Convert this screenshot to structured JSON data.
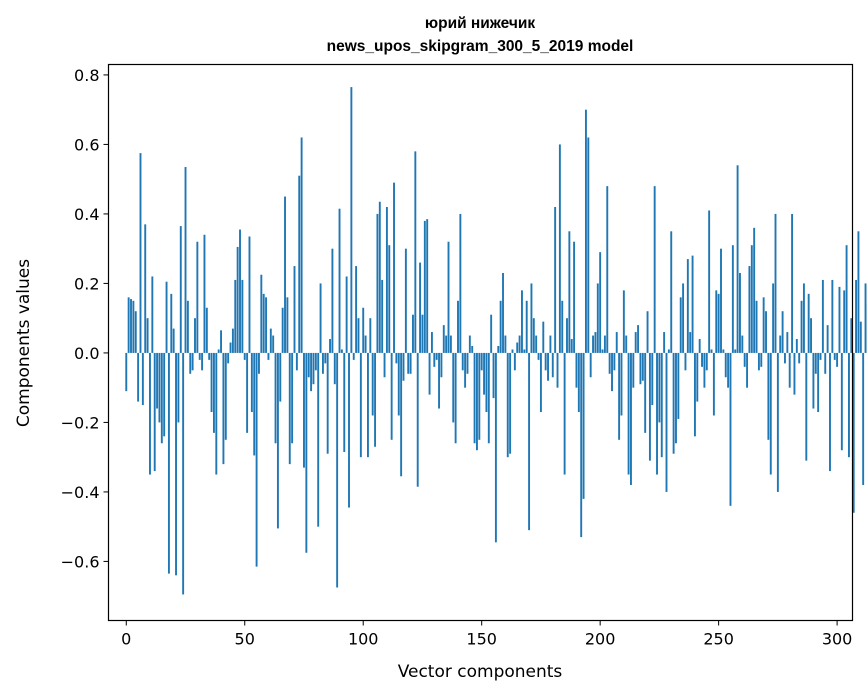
{
  "chart_data": {
    "type": "bar",
    "title": "юрий нижечик",
    "subtitle": "news_upos_skipgram_300_5_2019 model",
    "xlabel": "Vector components",
    "ylabel": "Components values",
    "xlim": [
      -7.5,
      306.5
    ],
    "ylim": [
      -0.77,
      0.83
    ],
    "xticks": [
      0,
      50,
      100,
      150,
      200,
      250,
      300
    ],
    "xtick_labels": [
      "0",
      "50",
      "100",
      "150",
      "200",
      "250",
      "300"
    ],
    "yticks": [
      -0.6,
      -0.4,
      -0.2,
      0.0,
      0.2,
      0.4,
      0.6,
      0.8
    ],
    "ytick_labels": [
      "−0.6",
      "−0.4",
      "−0.2",
      "0.0",
      "0.2",
      "0.4",
      "0.6",
      "0.8"
    ],
    "bar_color": "#1f77b4",
    "values": [
      -0.11,
      0.16,
      0.155,
      0.15,
      0.12,
      -0.14,
      0.575,
      -0.15,
      0.37,
      0.1,
      -0.35,
      0.22,
      -0.34,
      -0.16,
      -0.2,
      -0.26,
      -0.24,
      0.205,
      -0.635,
      0.17,
      0.07,
      -0.64,
      -0.2,
      0.365,
      -0.695,
      0.535,
      0.15,
      -0.06,
      -0.05,
      0.1,
      0.32,
      -0.02,
      -0.05,
      0.34,
      0.13,
      -0.02,
      -0.17,
      -0.23,
      -0.35,
      0.01,
      0.065,
      -0.32,
      -0.25,
      -0.03,
      0.03,
      0.07,
      0.21,
      0.305,
      0.355,
      0.21,
      -0.02,
      -0.23,
      0.335,
      -0.17,
      -0.295,
      -0.615,
      -0.06,
      0.225,
      0.17,
      0.16,
      -0.02,
      0.07,
      0.05,
      -0.26,
      -0.505,
      -0.14,
      0.13,
      0.45,
      0.16,
      -0.32,
      -0.26,
      0.25,
      -0.05,
      0.51,
      0.62,
      -0.33,
      -0.575,
      -0.07,
      -0.11,
      -0.09,
      -0.05,
      -0.5,
      0.2,
      -0.06,
      -0.03,
      -0.29,
      0.04,
      0.3,
      -0.09,
      -0.675,
      0.415,
      0.01,
      -0.285,
      0.22,
      -0.445,
      0.765,
      -0.02,
      0.25,
      0.1,
      -0.3,
      0.13,
      0.05,
      -0.3,
      0.1,
      -0.18,
      -0.27,
      0.4,
      0.435,
      0.21,
      -0.07,
      0.42,
      0.31,
      -0.25,
      0.49,
      -0.03,
      -0.18,
      -0.355,
      -0.08,
      0.3,
      -0.06,
      -0.06,
      0.11,
      0.58,
      -0.385,
      0.26,
      0.11,
      0.38,
      0.385,
      -0.12,
      0.06,
      -0.04,
      -0.02,
      -0.16,
      -0.07,
      0.08,
      0.05,
      0.32,
      0.05,
      -0.2,
      -0.26,
      0.15,
      0.4,
      -0.05,
      -0.1,
      -0.06,
      0.05,
      0.02,
      -0.26,
      -0.28,
      -0.25,
      -0.05,
      -0.12,
      -0.17,
      -0.26,
      0.11,
      -0.13,
      -0.545,
      0.02,
      0.15,
      0.23,
      0.05,
      -0.3,
      -0.29,
      0.01,
      -0.05,
      0.03,
      0.05,
      0.18,
      0.01,
      0.15,
      -0.51,
      0.2,
      0.1,
      0.05,
      -0.02,
      -0.17,
      0.09,
      -0.05,
      -0.08,
      0.05,
      -0.07,
      0.42,
      -0.1,
      0.6,
      0.15,
      -0.35,
      0.1,
      0.35,
      0.04,
      0.32,
      -0.1,
      -0.17,
      -0.53,
      -0.42,
      0.7,
      0.62,
      -0.07,
      0.05,
      0.06,
      0.2,
      0.29,
      0.01,
      0.05,
      0.48,
      -0.06,
      -0.11,
      -0.05,
      0.06,
      -0.25,
      -0.18,
      0.18,
      0.05,
      -0.35,
      -0.38,
      -0.1,
      0.06,
      0.08,
      -0.09,
      -0.08,
      -0.23,
      0.12,
      -0.31,
      -0.15,
      0.48,
      -0.35,
      -0.2,
      -0.3,
      0.06,
      -0.4,
      0.01,
      0.35,
      -0.29,
      -0.26,
      -0.19,
      0.16,
      0.2,
      -0.05,
      0.27,
      0.06,
      0.28,
      -0.24,
      -0.14,
      0.04,
      -0.04,
      -0.1,
      -0.05,
      0.41,
      0.01,
      -0.18,
      0.18,
      0.17,
      0.3,
      0.01,
      -0.07,
      -0.1,
      -0.44,
      0.31,
      0.01,
      0.54,
      0.23,
      0.05,
      -0.04,
      -0.1,
      0.25,
      0.31,
      0.36,
      0.15,
      -0.05,
      -0.04,
      0.16,
      0.12,
      -0.25,
      -0.35,
      0.2,
      0.4,
      -0.4,
      0.05,
      0.12,
      -0.03,
      0.06,
      -0.1,
      0.4,
      -0.12,
      0.04,
      -0.03,
      0.15,
      0.2,
      -0.31,
      0.17,
      0.1,
      -0.16,
      -0.06,
      -0.17,
      -0.02,
      0.21,
      -0.06,
      0.08,
      -0.34,
      0.21,
      -0.02,
      -0.04,
      0.19,
      -0.28,
      0.18,
      0.31,
      -0.3,
      0.1,
      -0.46,
      0.21,
      0.35,
      0.09,
      -0.38,
      0.2,
      0.14,
      0.02
    ]
  }
}
